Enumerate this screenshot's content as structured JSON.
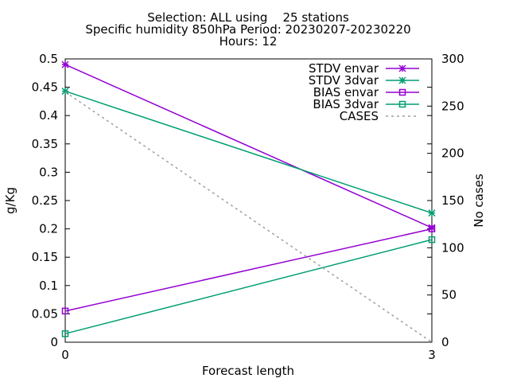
{
  "chart_data": {
    "type": "line",
    "title_lines": [
      "Selection: ALL using    25 stations",
      "Specific humidity 850hPa   Period: 20230207-20230220",
      "Hours: 12"
    ],
    "xlabel": "Forecast length",
    "ylabel": "g/Kg",
    "y2label": "No cases",
    "x": [
      0,
      3
    ],
    "xlim": [
      0,
      3
    ],
    "xticks": [
      "0",
      "3"
    ],
    "ylim": [
      0,
      0.5
    ],
    "yticks": [
      "0",
      "0.05",
      "0.1",
      "0.15",
      "0.2",
      "0.25",
      "0.3",
      "0.35",
      "0.4",
      "0.45",
      "0.5"
    ],
    "y2lim": [
      0,
      300
    ],
    "y2ticks": [
      "0",
      "50",
      "100",
      "150",
      "200",
      "250",
      "300"
    ],
    "grid": false,
    "legend_position": "top-right",
    "series": [
      {
        "name": "STDV envar",
        "values": [
          0.49,
          0.202
        ],
        "color": "#9400d3",
        "marker": "x-star",
        "axis": "y1",
        "dash": "solid"
      },
      {
        "name": "STDV 3dvar",
        "values": [
          0.443,
          0.228
        ],
        "color": "#009e73",
        "marker": "x-star",
        "axis": "y1",
        "dash": "solid"
      },
      {
        "name": "BIAS envar",
        "values": [
          0.055,
          0.2
        ],
        "color": "#9400d3",
        "marker": "square",
        "axis": "y1",
        "dash": "solid"
      },
      {
        "name": "BIAS 3dvar",
        "values": [
          0.015,
          0.181
        ],
        "color": "#009e73",
        "marker": "square",
        "axis": "y1",
        "dash": "solid"
      },
      {
        "name": "CASES",
        "values": [
          265,
          0
        ],
        "color": "#a0a0a0",
        "marker": "none",
        "axis": "y2",
        "dash": "dashed"
      }
    ]
  }
}
